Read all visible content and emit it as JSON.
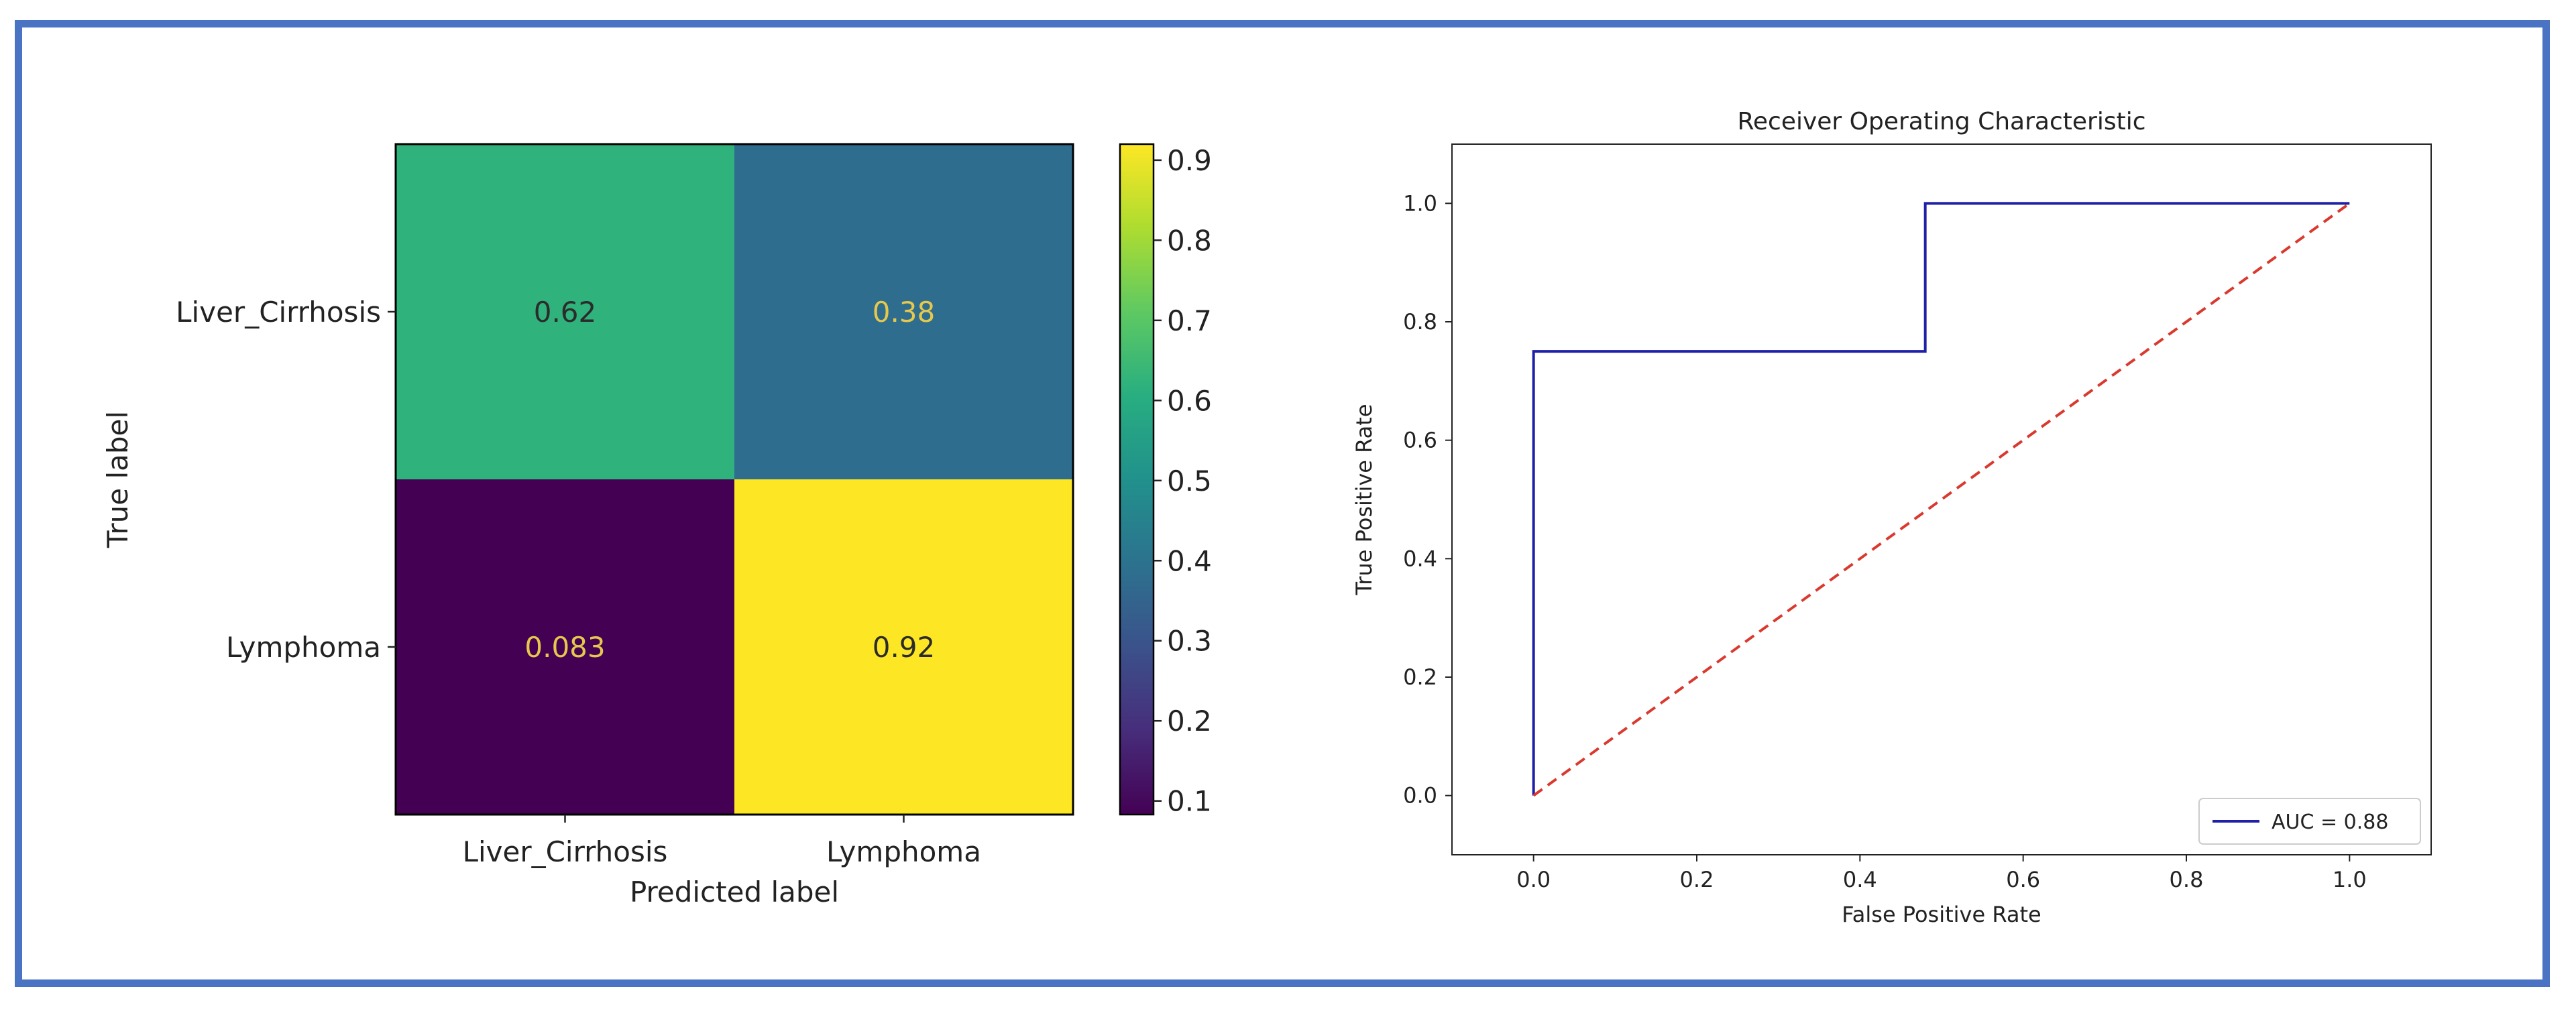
{
  "chart_data": [
    {
      "type": "heatmap",
      "title": "",
      "xlabel": "Predicted label",
      "ylabel": "True label",
      "x_categories": [
        "Liver_Cirrhosis",
        "Lymphoma"
      ],
      "y_categories": [
        "Liver_Cirrhosis",
        "Lymphoma"
      ],
      "values": [
        [
          0.62,
          0.38
        ],
        [
          0.083,
          0.92
        ]
      ],
      "value_labels": [
        [
          "0.62",
          "0.38"
        ],
        [
          "0.083",
          "0.92"
        ]
      ],
      "colormap": "viridis",
      "colorbar": {
        "range": [
          0.083,
          0.92
        ],
        "ticks": [
          0.1,
          0.2,
          0.3,
          0.4,
          0.5,
          0.6,
          0.7,
          0.8,
          0.9
        ],
        "tick_labels": [
          "0.1",
          "0.2",
          "0.3",
          "0.4",
          "0.5",
          "0.6",
          "0.7",
          "0.8",
          "0.9"
        ]
      }
    },
    {
      "type": "line",
      "title": "Receiver Operating Characteristic",
      "xlabel": "False Positive Rate",
      "ylabel": "True Positive Rate",
      "xlim": [
        -0.1,
        1.1
      ],
      "ylim": [
        -0.1,
        1.1
      ],
      "xticks": [
        0.0,
        0.2,
        0.4,
        0.6,
        0.8,
        1.0
      ],
      "xtick_labels": [
        "0.0",
        "0.2",
        "0.4",
        "0.6",
        "0.8",
        "1.0"
      ],
      "yticks": [
        0.0,
        0.2,
        0.4,
        0.6,
        0.8,
        1.0
      ],
      "ytick_labels": [
        "0.0",
        "0.2",
        "0.4",
        "0.6",
        "0.8",
        "1.0"
      ],
      "series": [
        {
          "name": "AUC = 0.88",
          "color": "#1f1fa8",
          "style": "solid",
          "x": [
            0.0,
            0.0,
            0.48,
            0.48,
            1.0
          ],
          "y": [
            0.0,
            0.75,
            0.75,
            1.0,
            1.0
          ]
        },
        {
          "name": "",
          "color": "#d9392e",
          "style": "dashed",
          "x": [
            0.0,
            1.0
          ],
          "y": [
            0.0,
            1.0
          ]
        }
      ],
      "legend": {
        "label": "AUC = 0.88",
        "placement": "lower-right"
      }
    }
  ]
}
